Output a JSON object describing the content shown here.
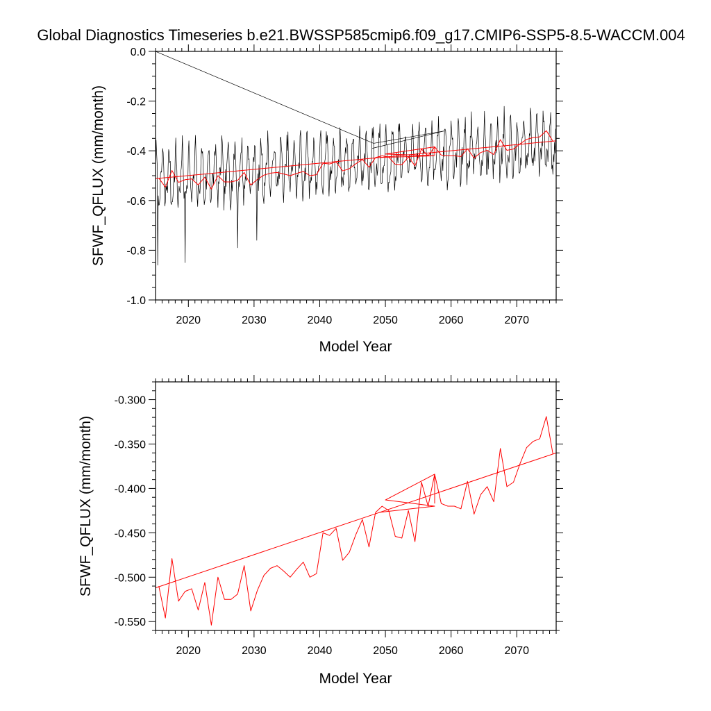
{
  "page": {
    "title": "Global Diagnostics Timeseries b.e21.BWSSP585cmip6.f09_g17.CMIP6-SSP5-8.5-WACCM.004"
  },
  "chart_data": [
    {
      "type": "line",
      "xlabel": "Model Year",
      "ylabel": "SFWF_QFLUX (mm/month)",
      "xlim": [
        2015,
        2076
      ],
      "ylim": [
        -1.0,
        0.0
      ],
      "x_ticks": [
        2020,
        2030,
        2040,
        2050,
        2060,
        2070
      ],
      "x_tick_labels": [
        "2020",
        "2030",
        "2040",
        "2050",
        "2060",
        "2070"
      ],
      "y_ticks": [
        0.0,
        -0.2,
        -0.4,
        -0.6,
        -0.8,
        -1.0
      ],
      "y_tick_labels": [
        "0.0",
        "-0.2",
        "-0.4",
        "-0.6",
        "-0.8",
        "-1.0"
      ],
      "grid": false,
      "colors": {
        "monthly": "#000000",
        "annual": "#ff0000",
        "trend": "#ff0000"
      },
      "series": [
        {
          "kind": "monthly",
          "note_seed": 7,
          "start_year": 2015.0,
          "months": 732,
          "mean_start": -0.52,
          "mean_end": -0.37,
          "amplitude": 0.09,
          "noise": 0.05,
          "spikes": [
            [
              2015.3,
              -0.86
            ],
            [
              2019.5,
              -0.85
            ],
            [
              2027.5,
              -0.79
            ],
            [
              2030.4,
              -0.76
            ]
          ]
        },
        {
          "kind": "monthly-overlay",
          "points": [
            [
              2015.0,
              0.0
            ],
            [
              2048.2,
              -0.37
            ],
            [
              2059.0,
              -0.32
            ],
            [
              2048.0,
              -0.39
            ]
          ]
        },
        {
          "kind": "annual",
          "x": [
            2015.5,
            2016.5,
            2017.5,
            2018.5,
            2019.5,
            2020.5,
            2021.5,
            2022.5,
            2023.5,
            2024.5,
            2025.5,
            2026.5,
            2027.5,
            2028.5,
            2029.5,
            2030.5,
            2031.5,
            2032.5,
            2033.5,
            2034.5,
            2035.5,
            2036.5,
            2037.5,
            2038.5,
            2039.5,
            2040.5,
            2041.5,
            2042.5,
            2043.5,
            2044.5,
            2045.5,
            2046.5,
            2047.5,
            2048.5,
            2049.5,
            2050.5,
            2051.5,
            2052.5,
            2053.5,
            2054.5,
            2055.5,
            2056.5,
            2057.5,
            2058.5,
            2059.5,
            2060.5,
            2061.5,
            2062.5,
            2063.5,
            2064.5,
            2065.5,
            2066.5,
            2067.5,
            2068.5,
            2069.5,
            2070.5,
            2071.5,
            2072.5,
            2073.5,
            2074.5,
            2075.5
          ],
          "y": [
            -0.51,
            -0.546,
            -0.479,
            -0.527,
            -0.516,
            -0.513,
            -0.537,
            -0.506,
            -0.554,
            -0.5,
            -0.525,
            -0.525,
            -0.519,
            -0.487,
            -0.538,
            -0.515,
            -0.498,
            -0.49,
            -0.487,
            -0.493,
            -0.5,
            -0.491,
            -0.483,
            -0.5,
            -0.496,
            -0.45,
            -0.453,
            -0.445,
            -0.481,
            -0.472,
            -0.452,
            -0.435,
            -0.466,
            -0.427,
            -0.42,
            -0.425,
            -0.454,
            -0.456,
            -0.425,
            -0.46,
            -0.393,
            -0.42,
            -0.384,
            -0.417,
            -0.42,
            -0.42,
            -0.423,
            -0.392,
            -0.429,
            -0.407,
            -0.398,
            -0.415,
            -0.355,
            -0.398,
            -0.393,
            -0.372,
            -0.354,
            -0.347,
            -0.344,
            -0.319,
            -0.361
          ]
        },
        {
          "kind": "annual-overlay",
          "points": [
            [
              2049.0,
              -0.427
            ],
            [
              2057.5,
              -0.42
            ],
            [
              2050.0,
              -0.413
            ],
            [
              2057.5,
              -0.384
            ],
            [
              2057.5,
              -0.417
            ]
          ]
        },
        {
          "kind": "trend",
          "x": [
            2015.0,
            2076.0
          ],
          "y": [
            -0.512,
            -0.36
          ]
        }
      ]
    },
    {
      "type": "line",
      "xlabel": "Model Year",
      "ylabel": "SFWF_QFLUX (mm/month)",
      "xlim": [
        2015,
        2076
      ],
      "ylim": [
        -0.56,
        -0.28
      ],
      "x_ticks": [
        2020,
        2030,
        2040,
        2050,
        2060,
        2070
      ],
      "x_tick_labels": [
        "2020",
        "2030",
        "2040",
        "2050",
        "2060",
        "2070"
      ],
      "y_ticks": [
        -0.3,
        -0.35,
        -0.4,
        -0.45,
        -0.5,
        -0.55
      ],
      "y_tick_labels": [
        "-0.300",
        "-0.350",
        "-0.400",
        "-0.450",
        "-0.500",
        "-0.550"
      ],
      "grid": false,
      "colors": {
        "annual": "#ff0000",
        "trend": "#ff0000"
      },
      "series": [
        {
          "kind": "annual",
          "ref": "same-as-top-annual"
        },
        {
          "kind": "annual-overlay",
          "points": [
            [
              2049.0,
              -0.427
            ],
            [
              2057.5,
              -0.42
            ],
            [
              2050.0,
              -0.413
            ],
            [
              2057.5,
              -0.384
            ],
            [
              2057.5,
              -0.417
            ]
          ]
        },
        {
          "kind": "trend",
          "x": [
            2015.0,
            2076.0
          ],
          "y": [
            -0.512,
            -0.36
          ]
        }
      ]
    }
  ]
}
